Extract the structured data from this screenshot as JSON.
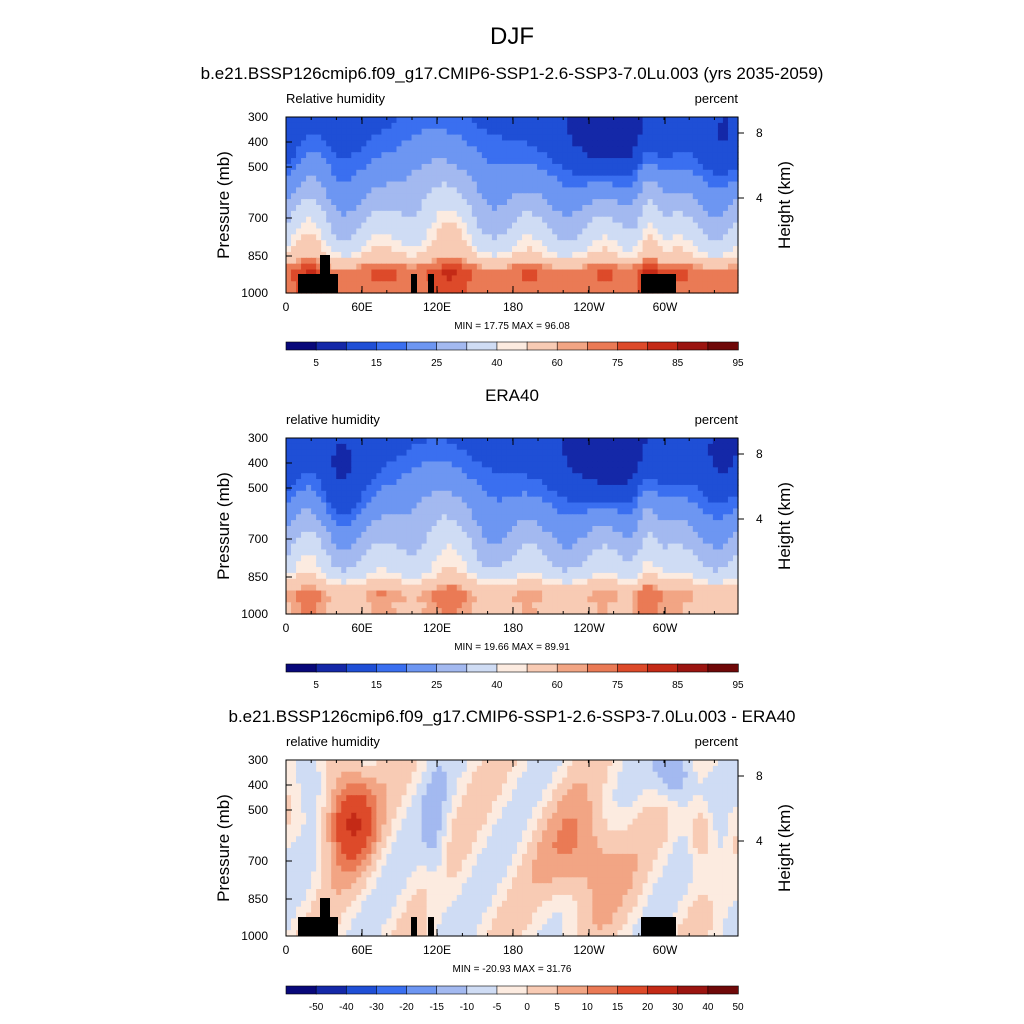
{
  "figure": {
    "title": "DJF"
  },
  "chart_data": [
    {
      "type": "heatmap",
      "title": "b.e21.BSSP126cmip6.f09_g17.CMIP6-SSP1-2.6-SSP3-7.0Lu.003 (yrs 2035-2059)",
      "left_label": "Relative humidity",
      "right_label": "percent",
      "ylabel": "Pressure (mb)",
      "ylabel_right": "Height (km)",
      "x_ticks": [
        "0",
        "60E",
        "120E",
        "180",
        "120W",
        "60W"
      ],
      "y_ticks": [
        "300",
        "400",
        "500",
        "700",
        "850",
        "1000"
      ],
      "y_ticks_right": [
        "8",
        "4"
      ],
      "stats": "MIN =  17.75  MAX =  96.08",
      "colorbar": {
        "labels": [
          "5",
          "15",
          "25",
          "40",
          "60",
          "75",
          "85",
          "95"
        ],
        "colors": [
          "#08087a",
          "#1428a8",
          "#1f4fd6",
          "#3a6ff0",
          "#6d96f2",
          "#a3b9f0",
          "#cfdcf4",
          "#fcebe0",
          "#f8cbb4",
          "#f2a584",
          "#ea7a55",
          "#dd4a2a",
          "#c42a16",
          "#9b1410",
          "#6f0808"
        ]
      },
      "fields": {
        "ylev": 0.72,
        "ydx": 0.12,
        "yspan": 0.6,
        "yamp": 0.22,
        "mult": 1.0,
        "kind": "abs",
        "terrain": true
      }
    },
    {
      "type": "heatmap",
      "title": "ERA40",
      "left_label": "relative humidity",
      "right_label": "percent",
      "ylabel": "Pressure (mb)",
      "ylabel_right": "Height (km)",
      "x_ticks": [
        "0",
        "60E",
        "120E",
        "180",
        "120W",
        "60W"
      ],
      "y_ticks": [
        "300",
        "400",
        "500",
        "700",
        "850",
        "1000"
      ],
      "y_ticks_right": [
        "8",
        "4"
      ],
      "stats": "MIN =  19.66  MAX =  89.91",
      "colorbar": {
        "labels": [
          "5",
          "15",
          "25",
          "40",
          "60",
          "75",
          "85",
          "95"
        ],
        "colors": [
          "#08087a",
          "#1428a8",
          "#1f4fd6",
          "#3a6ff0",
          "#6d96f2",
          "#a3b9f0",
          "#cfdcf4",
          "#fcebe0",
          "#f8cbb4",
          "#f2a584",
          "#ea7a55",
          "#dd4a2a",
          "#c42a16",
          "#9b1410",
          "#6f0808"
        ]
      },
      "fields": {
        "ylev": 0.7,
        "ydx": 0.2,
        "yspan": 0.55,
        "yamp": 0.25,
        "mult": 0.92,
        "kind": "abs",
        "terrain": false
      }
    },
    {
      "type": "heatmap",
      "title": "b.e21.BSSP126cmip6.f09_g17.CMIP6-SSP1-2.6-SSP3-7.0Lu.003 - ERA40",
      "left_label": "relative humidity",
      "right_label": "percent",
      "ylabel": "Pressure (mb)",
      "ylabel_right": "Height (km)",
      "x_ticks": [
        "0",
        "60E",
        "120E",
        "180",
        "120W",
        "60W"
      ],
      "y_ticks": [
        "300",
        "400",
        "500",
        "700",
        "850",
        "1000"
      ],
      "y_ticks_right": [
        "8",
        "4"
      ],
      "stats": "MIN = -20.93  MAX =  31.76",
      "colorbar": {
        "labels": [
          "-50",
          "-40",
          "-30",
          "-20",
          "-15",
          "-10",
          "-5",
          "0",
          "5",
          "10",
          "15",
          "20",
          "30",
          "40",
          "50"
        ],
        "colors": [
          "#08087a",
          "#1428a8",
          "#1f4fd6",
          "#3a6ff0",
          "#6d96f2",
          "#a3b9f0",
          "#cfdcf4",
          "#fcebe0",
          "#f8cbb4",
          "#f2a584",
          "#ea7a55",
          "#dd4a2a",
          "#c42a16",
          "#9b1410",
          "#6f0808"
        ]
      },
      "fields": {
        "kind": "diff",
        "terrain": true
      }
    }
  ]
}
